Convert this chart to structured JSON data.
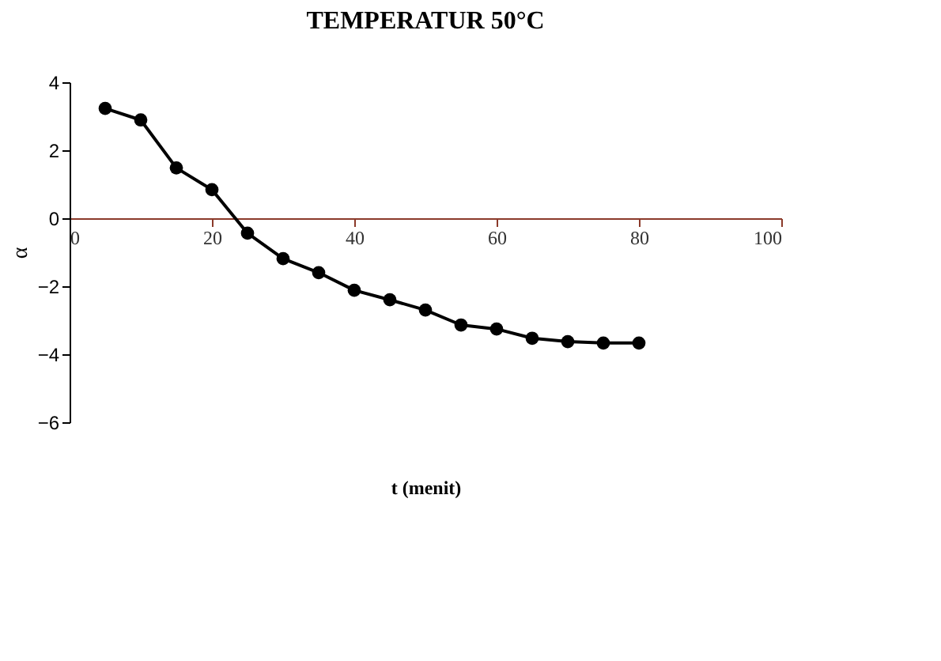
{
  "chart_data": {
    "type": "line",
    "title": "TEMPERATUR 50°C",
    "xlabel": "t (menit)",
    "ylabel": "α",
    "x": [
      5,
      10,
      15,
      20,
      25,
      30,
      35,
      40,
      45,
      50,
      55,
      60,
      65,
      70,
      75,
      80
    ],
    "series": [
      {
        "color": "#000000",
        "values": [
          3.23,
          2.89,
          1.48,
          0.84,
          -0.44,
          -1.19,
          -1.6,
          -2.12,
          -2.4,
          -2.7,
          -3.14,
          -3.26,
          -3.53,
          -3.63,
          -3.67,
          -3.67
        ]
      }
    ],
    "xlim": [
      0,
      100
    ],
    "xticks": [
      0,
      20,
      40,
      60,
      80,
      100
    ],
    "ylim": [
      -6,
      4
    ],
    "yticks": [
      -6,
      -4,
      -2,
      0,
      2,
      4
    ],
    "marker": "circle",
    "line_style": "solid",
    "grid": false
  }
}
